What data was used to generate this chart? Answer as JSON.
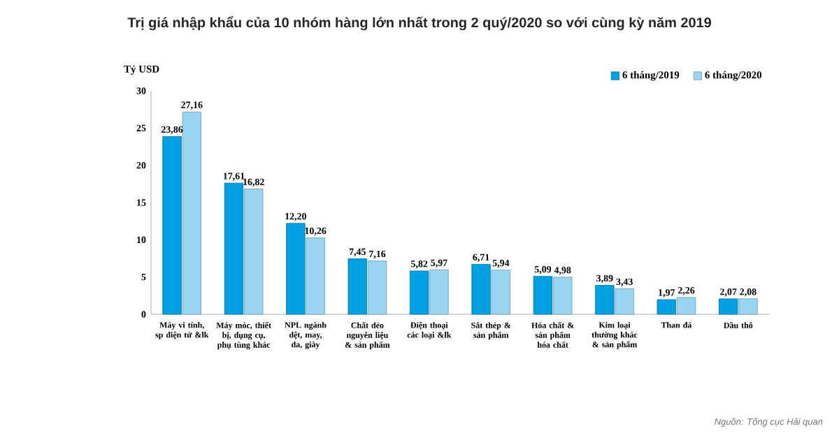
{
  "chart_data": {
    "type": "bar",
    "title": "Trị giá nhập khẩu của 10 nhóm hàng lớn nhất trong 2 quý/2020 so với cùng kỳ năm 2019",
    "ylabel": "Tỷ USD",
    "categories": [
      "Máy vi tính, sp điện tử &lk",
      "Máy móc, thiết bị, dụng cụ, phụ tùng khác",
      "NPL ngành dệt, may, da, giày",
      "Chất dẻo nguyên liệu & sản phẩm",
      "Điện thoại các loại &lk",
      "Sắt thép & sản phẩm",
      "Hóa chất & sản phẩm hóa chất",
      "Kim loại thường khác & sản phẩm",
      "Than đá",
      "Dầu thô"
    ],
    "series": [
      {
        "name": "6 tháng/2019",
        "color": "#00a0e3",
        "values": [
          23.86,
          17.61,
          12.2,
          7.45,
          5.82,
          6.71,
          5.09,
          3.89,
          1.97,
          2.07
        ],
        "value_labels": [
          "23,86",
          "17,61",
          "12,20",
          "7,45",
          "5,82",
          "6,71",
          "5,09",
          "3,89",
          "1,97",
          "2,07"
        ]
      },
      {
        "name": "6 tháng/2020",
        "color": "#9ad6f2",
        "values": [
          27.16,
          16.82,
          10.26,
          7.16,
          5.97,
          5.94,
          4.98,
          3.43,
          2.26,
          2.08
        ],
        "value_labels": [
          "27,16",
          "16,82",
          "10,26",
          "7,16",
          "5,97",
          "5,94",
          "4,98",
          "3,43",
          "2,26",
          "2,08"
        ]
      }
    ],
    "ylim": [
      0,
      30
    ],
    "yticks": [
      0,
      5,
      10,
      15,
      20,
      25,
      30
    ],
    "legend": "top right",
    "annotations": [
      "Nguồn: Tổng cục Hải quan"
    ]
  }
}
